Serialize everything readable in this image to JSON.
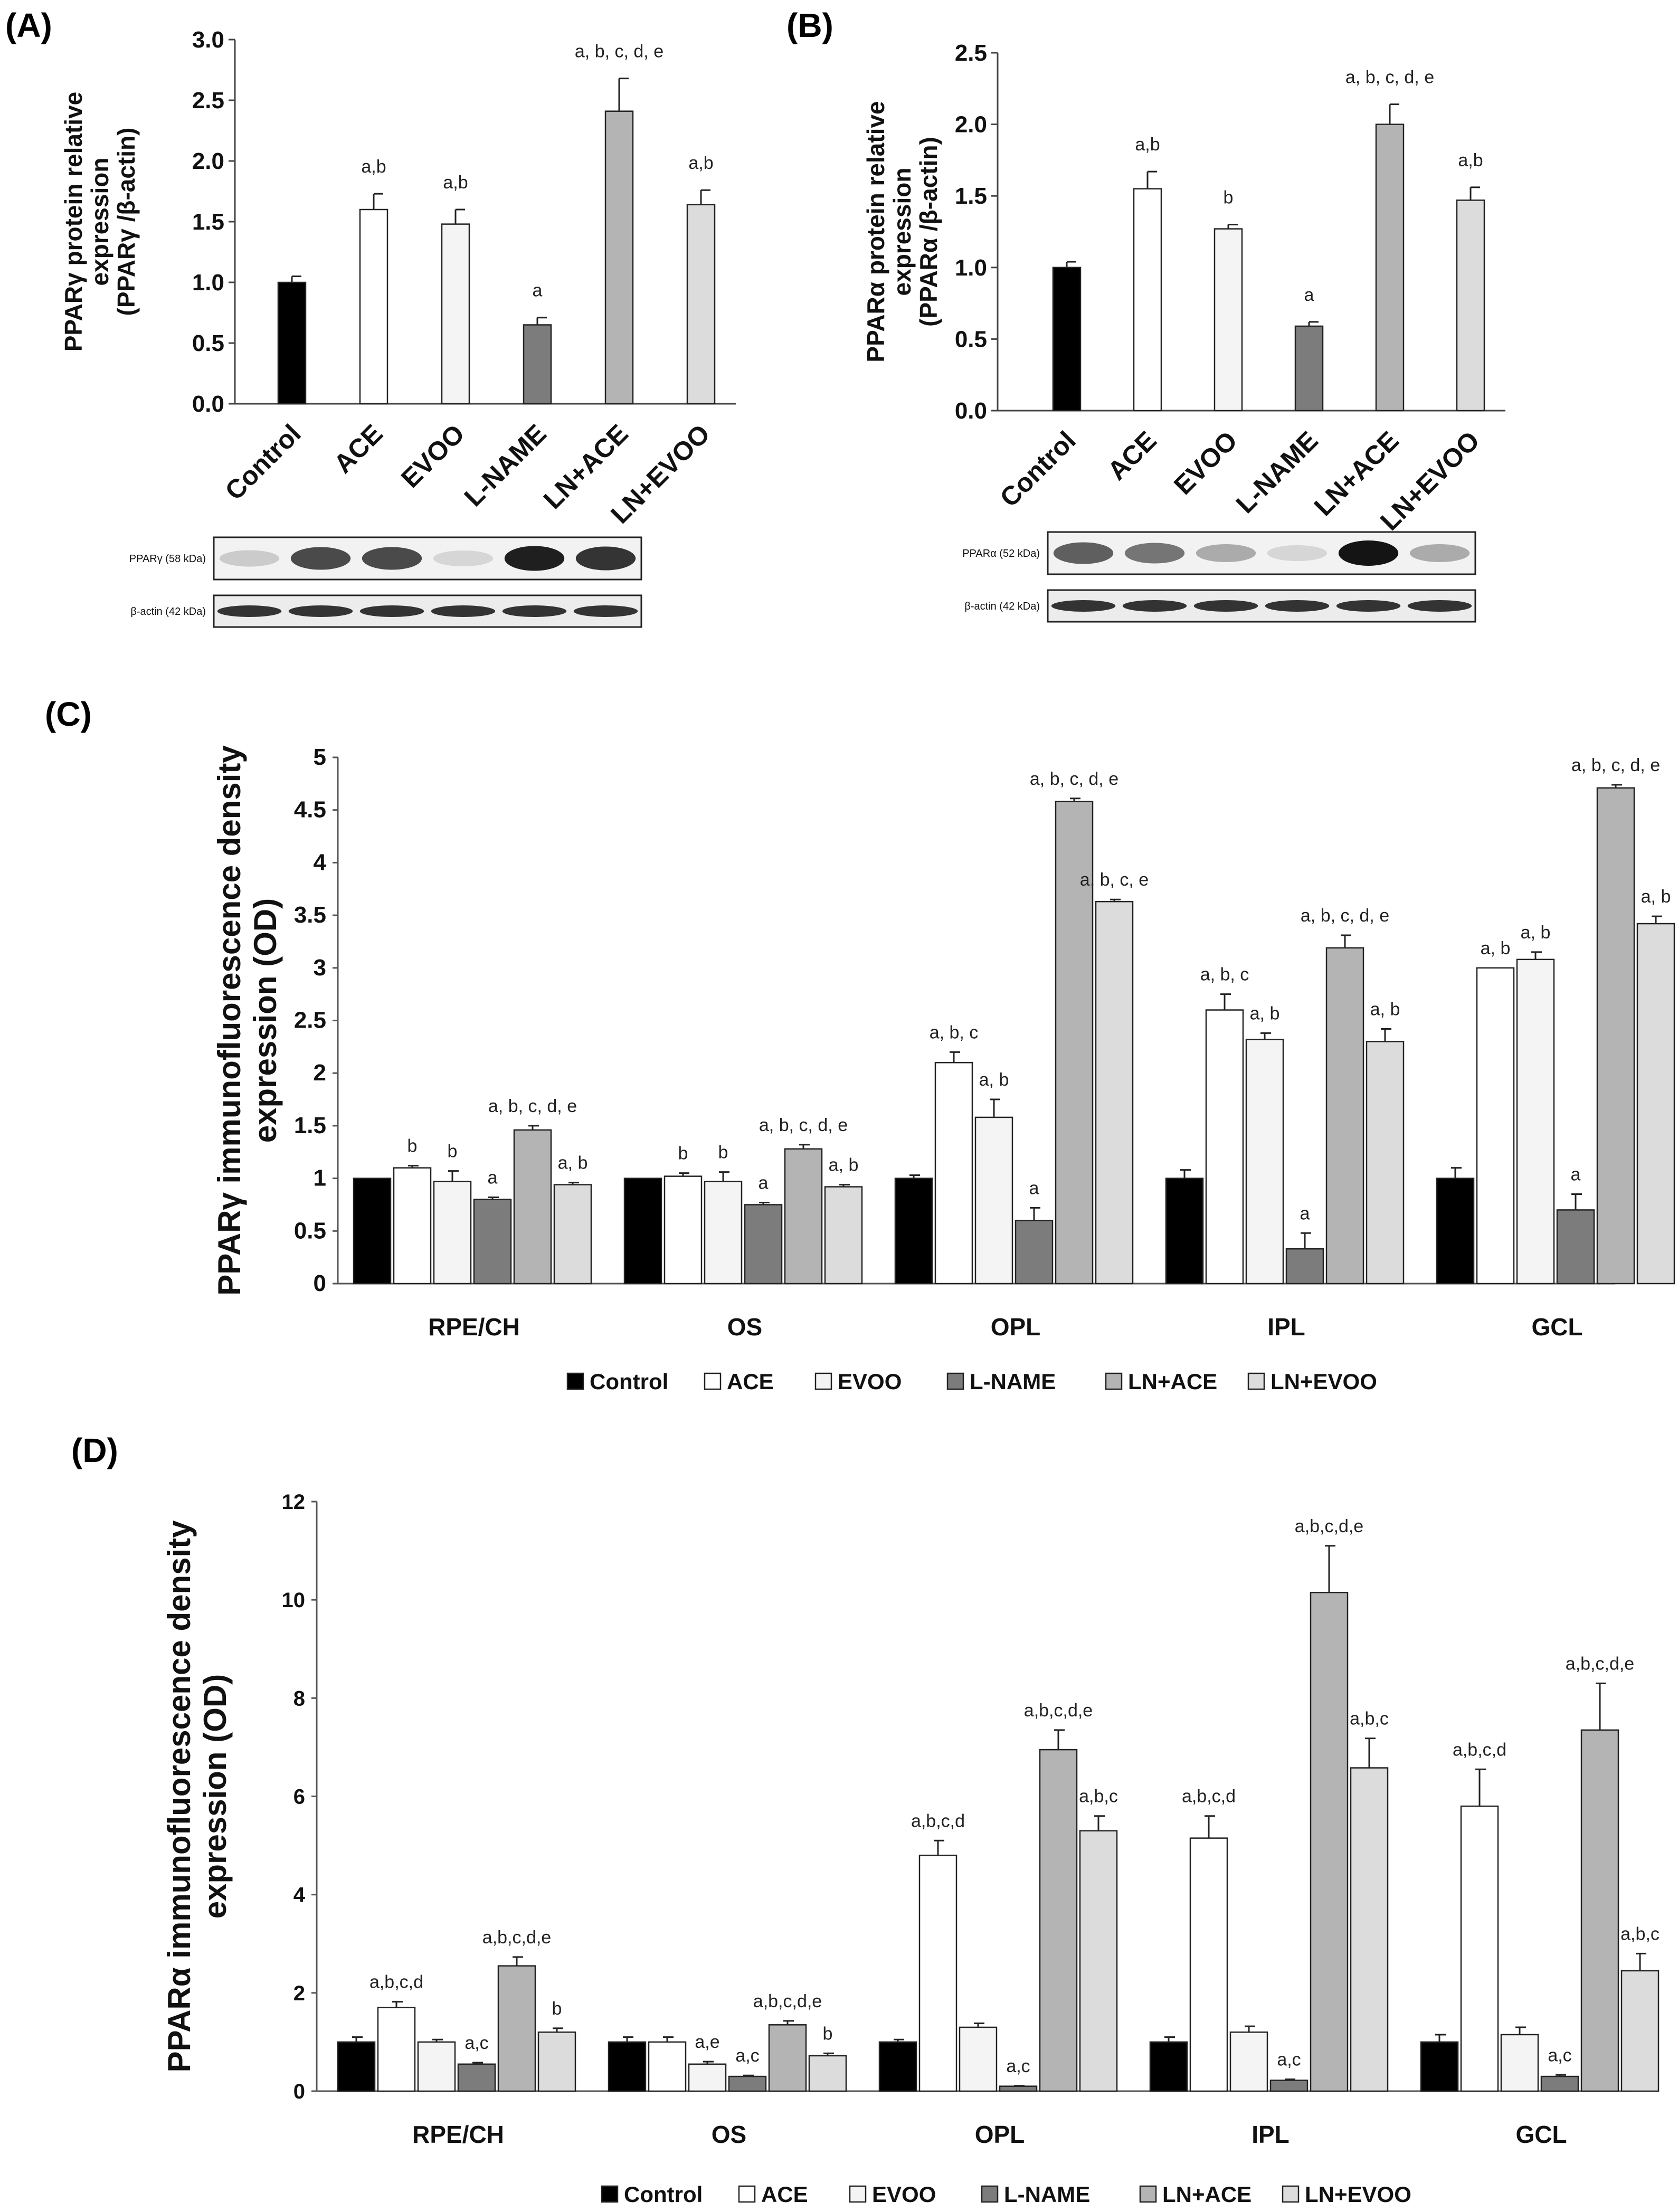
{
  "panels": {
    "A": "(A)",
    "B": "(B)",
    "C": "(C)",
    "D": "(D)"
  },
  "colors": {
    "Control": "#000000",
    "ACE": "#ffffff",
    "EVOO": "#f4f4f4",
    "L-NAME": "#7c7c7c",
    "LN+ACE": "#b4b4b4",
    "LN+EVOO": "#dcdcdc"
  },
  "blots": {
    "A": {
      "target": "PPARγ (58 kDa)",
      "loading": "β-actin (42 kDa)",
      "intensity": [
        0.15,
        0.75,
        0.75,
        0.1,
        0.95,
        0.85
      ]
    },
    "B": {
      "target": "PPARα (52 kDa)",
      "loading": "β-actin (42 kDa)",
      "intensity": [
        0.65,
        0.55,
        0.3,
        0.1,
        1.0,
        0.3
      ]
    }
  },
  "chart_data": [
    {
      "id": "A",
      "type": "bar",
      "ylabel_lines": [
        "PPARγ protein relative",
        "expression",
        "(PPARγ /β-actin)"
      ],
      "categories": [
        "Control",
        "ACE",
        "EVOO",
        "L-NAME",
        "LN+ACE",
        "LN+EVOO"
      ],
      "values": [
        1.0,
        1.6,
        1.48,
        0.65,
        2.41,
        1.64
      ],
      "errors": [
        0.05,
        0.13,
        0.12,
        0.06,
        0.27,
        0.12
      ],
      "annotations": [
        "",
        "a,b",
        "a,b",
        "a",
        "a, b, c, d, e",
        "a,b"
      ],
      "ylim": [
        0,
        3
      ],
      "yticks": [
        "0.0",
        "0.5",
        "1.0",
        "1.5",
        "2.0",
        "2.5",
        "3.0"
      ]
    },
    {
      "id": "B",
      "type": "bar",
      "ylabel_lines": [
        "PPARα protein relative",
        "expression",
        "(PPARα /β-actin)"
      ],
      "categories": [
        "Control",
        "ACE",
        "EVOO",
        "L-NAME",
        "LN+ACE",
        "LN+EVOO"
      ],
      "values": [
        1.0,
        1.55,
        1.27,
        0.59,
        2.0,
        1.47
      ],
      "errors": [
        0.04,
        0.12,
        0.03,
        0.03,
        0.14,
        0.09
      ],
      "annotations": [
        "",
        "a,b",
        "b",
        "a",
        "a, b, c, d, e",
        "a,b"
      ],
      "ylim": [
        0,
        2.5
      ],
      "yticks": [
        "0.0",
        "0.5",
        "1.0",
        "1.5",
        "2.0",
        "2.5"
      ]
    },
    {
      "id": "C",
      "type": "bar",
      "ylabel_lines": [
        "PPARγ immunofluorescence density",
        "expression (OD)"
      ],
      "groups": [
        "RPE/CH",
        "OS",
        "OPL",
        "IPL",
        "GCL"
      ],
      "series": [
        {
          "name": "Control",
          "values": [
            1.0,
            1.0,
            1.0,
            1.0,
            1.0
          ],
          "errors": [
            0.0,
            0.0,
            0.03,
            0.08,
            0.1
          ],
          "annotations": [
            "",
            "",
            "",
            "",
            ""
          ]
        },
        {
          "name": "ACE",
          "values": [
            1.1,
            1.02,
            2.1,
            2.6,
            3.0
          ],
          "errors": [
            0.02,
            0.03,
            0.1,
            0.15,
            0.0
          ],
          "annotations": [
            "b",
            "b",
            "a, b, c",
            "a, b, c",
            "a, b"
          ]
        },
        {
          "name": "EVOO",
          "values": [
            0.97,
            0.97,
            1.58,
            2.32,
            3.08
          ],
          "errors": [
            0.1,
            0.09,
            0.17,
            0.06,
            0.07
          ],
          "annotations": [
            "b",
            "b",
            "a, b",
            "a, b",
            "a, b"
          ]
        },
        {
          "name": "L-NAME",
          "values": [
            0.8,
            0.75,
            0.6,
            0.33,
            0.7
          ],
          "errors": [
            0.02,
            0.02,
            0.12,
            0.15,
            0.15
          ],
          "annotations": [
            "a",
            "a",
            "a",
            "a",
            "a"
          ]
        },
        {
          "name": "LN+ACE",
          "values": [
            1.46,
            1.28,
            4.58,
            3.19,
            4.71
          ],
          "errors": [
            0.04,
            0.04,
            0.03,
            0.12,
            0.03
          ],
          "annotations": [
            "a, b, c, d, e",
            "a, b, c, d, e",
            "a, b, c, d, e",
            "a, b, c, d, e",
            "a, b, c, d, e"
          ]
        },
        {
          "name": "LN+EVOO",
          "values": [
            0.94,
            0.92,
            3.63,
            2.3,
            3.42
          ],
          "errors": [
            0.02,
            0.02,
            0.02,
            0.12,
            0.07
          ],
          "annotations": [
            "a, b",
            "a, b",
            "a, b, c, e",
            "a, b",
            "a, b"
          ]
        }
      ],
      "ylim": [
        0,
        5
      ],
      "yticks": [
        "0",
        "0.5",
        "1",
        "1.5",
        "2",
        "2.5",
        "3",
        "3.5",
        "4",
        "4.5",
        "5"
      ],
      "legend": [
        "Control",
        "ACE",
        "EVOO",
        "L-NAME",
        "LN+ACE",
        "LN+EVOO"
      ],
      "legend_position": "bottom"
    },
    {
      "id": "D",
      "type": "bar",
      "ylabel_lines": [
        "PPARα immunofluorescence  density",
        "expression (OD)"
      ],
      "groups": [
        "RPE/CH",
        "OS",
        "OPL",
        "IPL",
        "GCL"
      ],
      "series": [
        {
          "name": "Control",
          "values": [
            1.0,
            1.0,
            1.0,
            1.0,
            1.0
          ],
          "errors": [
            0.1,
            0.1,
            0.05,
            0.1,
            0.15
          ],
          "annotations": [
            "",
            "",
            "",
            "",
            ""
          ]
        },
        {
          "name": "ACE",
          "values": [
            1.7,
            1.0,
            4.8,
            5.15,
            5.8
          ],
          "errors": [
            0.12,
            0.1,
            0.3,
            0.45,
            0.75
          ],
          "annotations": [
            "a,b,c,d",
            "",
            "a,b,c,d",
            "a,b,c,d",
            "a,b,c,d"
          ]
        },
        {
          "name": "EVOO",
          "values": [
            1.0,
            0.55,
            1.3,
            1.2,
            1.15
          ],
          "errors": [
            0.05,
            0.05,
            0.08,
            0.12,
            0.15
          ],
          "annotations": [
            "",
            "a,e",
            "",
            "",
            ""
          ]
        },
        {
          "name": "L-NAME",
          "values": [
            0.55,
            0.3,
            0.1,
            0.22,
            0.3
          ],
          "errors": [
            0.03,
            0.02,
            0.01,
            0.02,
            0.03
          ],
          "annotations": [
            "a,c",
            "a,c",
            "a,c",
            "a,c",
            "a,c"
          ]
        },
        {
          "name": "LN+ACE",
          "values": [
            2.55,
            1.35,
            6.95,
            10.15,
            7.35
          ],
          "errors": [
            0.18,
            0.08,
            0.4,
            0.95,
            0.95
          ],
          "annotations": [
            "a,b,c,d,e",
            "a,b,c,d,e",
            "a,b,c,d,e",
            "a,b,c,d,e",
            "a,b,c,d,e"
          ]
        },
        {
          "name": "LN+EVOO",
          "values": [
            1.2,
            0.72,
            5.3,
            6.58,
            2.45
          ],
          "errors": [
            0.08,
            0.05,
            0.3,
            0.6,
            0.35
          ],
          "annotations": [
            "b",
            "b",
            "a,b,c",
            "a,b,c",
            "a,b,c"
          ]
        }
      ],
      "ylim": [
        0,
        12
      ],
      "yticks": [
        "0",
        "2",
        "4",
        "6",
        "8",
        "10",
        "12"
      ],
      "legend": [
        "Control",
        "ACE",
        "EVOO",
        "L-NAME",
        "LN+ACE",
        "LN+EVOO"
      ],
      "legend_position": "bottom"
    }
  ]
}
